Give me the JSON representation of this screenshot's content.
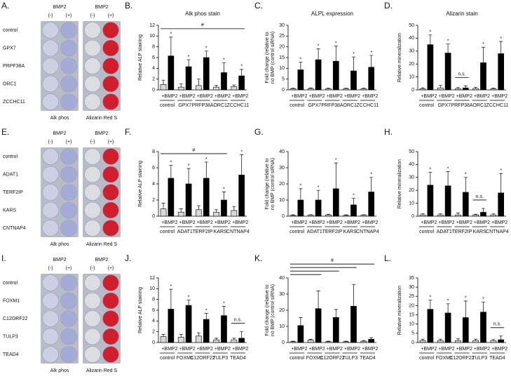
{
  "chart_data": [
    {
      "type": "bar",
      "panel": "B.",
      "title": "Alk phos stain",
      "ylabel": "Relative ALP staining",
      "categories": [
        "control",
        "GPX7",
        "PRFP38A",
        "ORC1",
        "ZCCHC11"
      ],
      "series": [
        {
          "color": "#d9d9d9",
          "values": [
            1.0,
            0.5,
            0.8,
            0.5,
            0.6
          ],
          "errors": [
            0.8,
            0.6,
            1.2,
            0.3,
            0.3
          ]
        },
        {
          "name": "+BMP2",
          "color": "#000000",
          "values": [
            6.3,
            4.3,
            6.0,
            3.2,
            2.6
          ],
          "errors": [
            3.5,
            1.3,
            1.2,
            1.8,
            1.2
          ],
          "marks": [
            "*",
            "*",
            "*",
            "*",
            "*"
          ]
        }
      ],
      "brackets": [
        {
          "text": "#",
          "from": "control",
          "to": "ZCCHC11"
        }
      ],
      "ylim": [
        0,
        12
      ],
      "yticks": [
        0,
        2,
        4,
        6,
        8,
        10,
        12
      ]
    },
    {
      "type": "bar",
      "panel": "C.",
      "title": "ALPL expression",
      "ylabel": [
        "Fold change (relative to",
        "no BMP (control siRNA)"
      ],
      "categories": [
        "control",
        "GPX7",
        "PRFP38A",
        "ORC1",
        "ZCCHC11"
      ],
      "series": [
        {
          "color": "#d9d9d9",
          "values": [
            0.5,
            0.6,
            0.5,
            0.5,
            0.5
          ],
          "errors": [
            0.3,
            0.3,
            0.3,
            0.3,
            0.3
          ]
        },
        {
          "name": "+BMP2",
          "color": "#000000",
          "values": [
            9.3,
            14,
            13.3,
            8.8,
            10.5
          ],
          "errors": [
            3.5,
            5,
            7,
            6.5,
            5.5
          ],
          "marks": [
            "*",
            "*",
            "*",
            "*",
            "*"
          ]
        }
      ],
      "ylim": [
        0,
        30
      ],
      "yticks": [
        0,
        5,
        10,
        15,
        20,
        25,
        30
      ]
    },
    {
      "type": "bar",
      "panel": "D.",
      "title": "Alizarin stain",
      "ylabel": "Relative mineralization",
      "categories": [
        "control",
        "GPX7",
        "PRFP38A",
        "ORC1",
        "ZCCHC11"
      ],
      "series": [
        {
          "color": "#d9d9d9",
          "values": [
            0.8,
            1.5,
            0.8,
            1.0,
            0.8
          ],
          "errors": [
            0.8,
            2,
            1,
            1,
            0.5
          ]
        },
        {
          "name": "+BMP2",
          "color": "#000000",
          "values": [
            35,
            28.5,
            1.5,
            21,
            28
          ],
          "errors": [
            7.5,
            7,
            1.5,
            12,
            9.5
          ],
          "marks": [
            "*",
            "*",
            null,
            "*",
            "*"
          ]
        }
      ],
      "brackets": [
        {
          "text": "n.s.",
          "from": "PRFP38A",
          "to": "PRFP38A"
        }
      ],
      "ylim": [
        0,
        50
      ],
      "yticks": [
        0,
        10,
        20,
        30,
        40,
        50
      ]
    },
    {
      "type": "bar",
      "panel": "F.",
      "ylabel": "Relative ALP staining",
      "categories": [
        "control",
        "ADAT1",
        "TERF2IP",
        "KARS",
        "CNTNAP4"
      ],
      "series": [
        {
          "color": "#d9d9d9",
          "values": [
            0.9,
            0.5,
            0.8,
            0.5,
            0.7
          ],
          "errors": [
            0.7,
            0.4,
            0.5,
            0.3,
            0.5
          ]
        },
        {
          "name": "+BMP2",
          "color": "#000000",
          "values": [
            4.7,
            4.0,
            4.7,
            2.0,
            5.1
          ],
          "errors": [
            1.6,
            1.9,
            2.0,
            1.0,
            2.5
          ],
          "marks": [
            "*",
            "*",
            "*",
            "*",
            "*"
          ]
        }
      ],
      "brackets": [
        {
          "text": "#",
          "from": "control",
          "to": "KARS"
        }
      ],
      "ylim": [
        0,
        8
      ],
      "yticks": [
        0,
        2,
        4,
        6,
        8
      ]
    },
    {
      "type": "bar",
      "panel": "G.",
      "ylabel": [
        "Fold change (relative to",
        "no BMP (control siRNA)"
      ],
      "categories": [
        "control",
        "ADAT1",
        "TERF2IP",
        "KARS",
        "CNTNAP4"
      ],
      "series": [
        {
          "color": "#d9d9d9",
          "values": [
            0.5,
            0.6,
            0.8,
            0.5,
            0.6
          ],
          "errors": [
            0.3,
            0.3,
            0.4,
            0.3,
            0.3
          ]
        },
        {
          "name": "+BMP2",
          "color": "#000000",
          "values": [
            10,
            10,
            17,
            7,
            15
          ],
          "errors": [
            7,
            6,
            16,
            4,
            9
          ],
          "marks": [
            "*",
            "*",
            "*",
            "*",
            "*"
          ]
        }
      ],
      "ylim": [
        0,
        40
      ],
      "yticks": [
        0,
        10,
        20,
        30,
        40
      ]
    },
    {
      "type": "bar",
      "panel": "H.",
      "ylabel": "Relative mineralization",
      "categories": [
        "control",
        "ADAT1",
        "TERF2IP",
        "KARS",
        "CNTNAP4"
      ],
      "series": [
        {
          "color": "#d9d9d9",
          "values": [
            1,
            1,
            1,
            1,
            1
          ],
          "errors": [
            1,
            0.8,
            1.5,
            0.5,
            0.8
          ]
        },
        {
          "name": "+BMP2",
          "color": "#000000",
          "values": [
            24,
            23.5,
            18.5,
            3,
            18
          ],
          "errors": [
            10,
            11,
            11.5,
            3,
            15
          ],
          "marks": [
            "*",
            "*",
            "*",
            null,
            "*"
          ]
        }
      ],
      "brackets": [
        {
          "text": "n.s.",
          "from": "KARS",
          "to": "KARS"
        }
      ],
      "ylim": [
        0,
        50
      ],
      "yticks": [
        0,
        10,
        20,
        30,
        40,
        50
      ]
    },
    {
      "type": "bar",
      "panel": "J.",
      "ylabel": "Relative ALP staining",
      "categories": [
        "control",
        "FOXM1",
        "C12ORF22",
        "TULP3",
        "TEAD4"
      ],
      "series": [
        {
          "color": "#d9d9d9",
          "values": [
            1.1,
            1.0,
            1.2,
            0.5,
            0.5
          ],
          "errors": [
            0.4,
            0.5,
            0.6,
            0.3,
            0.3
          ]
        },
        {
          "name": "+BMP2",
          "color": "#000000",
          "values": [
            6.2,
            6.9,
            4.3,
            5.0,
            0.8
          ],
          "errors": [
            3.7,
            1.0,
            1.1,
            1.7,
            1.2
          ],
          "marks": [
            "*",
            "*",
            "*",
            "*",
            null
          ]
        }
      ],
      "brackets": [
        {
          "text": "n.s.",
          "from": "TEAD4",
          "to": "TEAD4"
        }
      ],
      "ylim": [
        0,
        12
      ],
      "yticks": [
        0,
        2,
        4,
        6,
        8,
        10,
        12
      ]
    },
    {
      "type": "bar",
      "panel": "K.",
      "ylabel": [
        "Fold change (relative to",
        "no BMP (control siRNA)"
      ],
      "categories": [
        "control",
        "FOXM1",
        "C12ORF22",
        "TULP3",
        "TEAD4"
      ],
      "series": [
        {
          "color": "#d9d9d9",
          "values": [
            0.5,
            1.5,
            0.5,
            0.5,
            0.8
          ],
          "errors": [
            0.3,
            0.5,
            0.3,
            0.3,
            0.4
          ]
        },
        {
          "name": "+BMP2",
          "color": "#000000",
          "values": [
            10.5,
            21,
            15.5,
            22.5,
            2
          ],
          "errors": [
            5,
            11,
            5,
            13.5,
            1
          ]
        }
      ],
      "brackets": [
        {
          "from": "control",
          "to": "FOXM1"
        },
        {
          "from": "control",
          "to": "C12ORF22"
        },
        {
          "from": "control",
          "to": "TULP3"
        },
        {
          "text": "#",
          "from": "control",
          "to": "TEAD4"
        }
      ],
      "ylim": [
        0,
        40
      ],
      "yticks": [
        0,
        10,
        20,
        30,
        40
      ]
    },
    {
      "type": "bar",
      "panel": "L.",
      "ylabel": "Relative mineralization",
      "categories": [
        "control",
        "FOXM1",
        "C12ORF22",
        "TULP3",
        "TEAD4"
      ],
      "series": [
        {
          "color": "#d9d9d9",
          "values": [
            1,
            1,
            1,
            1,
            1
          ],
          "errors": [
            0.8,
            0.8,
            1,
            0.8,
            0.6
          ]
        },
        {
          "name": "+BMP2",
          "color": "#000000",
          "values": [
            18,
            16,
            13.5,
            16.5,
            1.5
          ],
          "errors": [
            5,
            5,
            9,
            5.5,
            2
          ],
          "marks": [
            "*",
            "*",
            "*",
            "*",
            null
          ]
        }
      ],
      "brackets": [
        {
          "text": "n.s.",
          "from": "TEAD4",
          "to": "TEAD4"
        }
      ],
      "ylim": [
        0,
        35
      ],
      "yticks": [
        0,
        5,
        10,
        15,
        20,
        25,
        30,
        35
      ]
    }
  ],
  "plates": [
    {
      "panel": "A.",
      "header": "BMP2",
      "neg": "(-)",
      "pos": "(+)",
      "rows": [
        "control",
        "GPX7",
        "PRPF38A",
        "ORC1",
        "ZCCHC11"
      ],
      "left_label": "Alk phos",
      "right_label": "Alizarin Red S"
    },
    {
      "panel": "E.",
      "header": "BMP2",
      "neg": "(-)",
      "pos": "(+)",
      "rows": [
        "control",
        "ADAT1",
        "TERF2IP",
        "KARS",
        "CNTNAP4"
      ],
      "left_label": "Alk phos",
      "right_label": "Alizarin Red S"
    },
    {
      "panel": "I.",
      "header": "BMP2",
      "neg": "(-)",
      "pos": "(+)",
      "rows": [
        "control",
        "FOXM1",
        "C12ORF22",
        "TULP3",
        "TEAD4"
      ],
      "left_label": "Alk phos",
      "right_label": "Alizarin Red S"
    }
  ]
}
